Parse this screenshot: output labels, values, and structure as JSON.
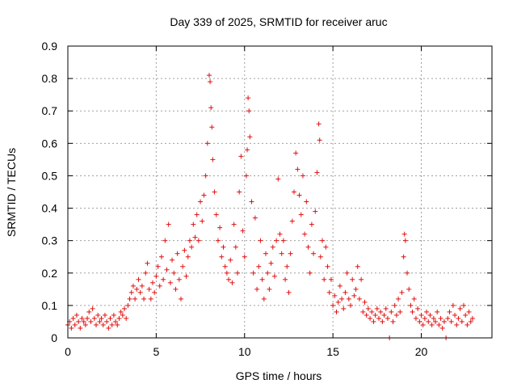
{
  "chart_data": {
    "type": "scatter",
    "title": "Day 339 of 2025, SRMTID for receiver aruc",
    "xlabel": "GPS time / hours",
    "ylabel": "SRMTID / TECUs",
    "xlim": [
      0,
      24
    ],
    "ylim": [
      0,
      0.9
    ],
    "xticks": [
      0,
      5,
      10,
      15,
      20
    ],
    "yticks": [
      0,
      0.1,
      0.2,
      0.3,
      0.4,
      0.5,
      0.6,
      0.7,
      0.8,
      0.9
    ],
    "xtick_labels": [
      "0",
      "5",
      "10",
      "15",
      "20"
    ],
    "ytick_labels": [
      "0",
      "0.1",
      "0.2",
      "0.3",
      "0.4",
      "0.5",
      "0.6",
      "0.7",
      "0.8",
      "0.9"
    ],
    "grid": true,
    "marker": "+",
    "color": "#e01010",
    "series": [
      {
        "name": "SRMTID",
        "points": [
          [
            0.0,
            0.04
          ],
          [
            0.1,
            0.05
          ],
          [
            0.2,
            0.03
          ],
          [
            0.3,
            0.06
          ],
          [
            0.4,
            0.04
          ],
          [
            0.5,
            0.07
          ],
          [
            0.6,
            0.05
          ],
          [
            0.7,
            0.03
          ],
          [
            0.8,
            0.06
          ],
          [
            0.9,
            0.05
          ],
          [
            1.0,
            0.04
          ],
          [
            1.1,
            0.06
          ],
          [
            1.2,
            0.08
          ],
          [
            1.3,
            0.05
          ],
          [
            1.4,
            0.09
          ],
          [
            1.5,
            0.06
          ],
          [
            1.6,
            0.04
          ],
          [
            1.7,
            0.07
          ],
          [
            1.8,
            0.05
          ],
          [
            1.9,
            0.06
          ],
          [
            2.0,
            0.04
          ],
          [
            2.1,
            0.07
          ],
          [
            2.2,
            0.05
          ],
          [
            2.3,
            0.03
          ],
          [
            2.4,
            0.06
          ],
          [
            2.5,
            0.04
          ],
          [
            2.6,
            0.07
          ],
          [
            2.7,
            0.05
          ],
          [
            2.8,
            0.04
          ],
          [
            2.9,
            0.06
          ],
          [
            3.0,
            0.08
          ],
          [
            3.1,
            0.07
          ],
          [
            3.2,
            0.09
          ],
          [
            3.3,
            0.06
          ],
          [
            3.4,
            0.1
          ],
          [
            3.5,
            0.12
          ],
          [
            3.6,
            0.14
          ],
          [
            3.7,
            0.16
          ],
          [
            3.8,
            0.12
          ],
          [
            3.9,
            0.15
          ],
          [
            4.0,
            0.18
          ],
          [
            4.1,
            0.14
          ],
          [
            4.2,
            0.16
          ],
          [
            4.3,
            0.12
          ],
          [
            4.4,
            0.2
          ],
          [
            4.5,
            0.23
          ],
          [
            4.6,
            0.15
          ],
          [
            4.7,
            0.12
          ],
          [
            4.8,
            0.17
          ],
          [
            4.9,
            0.14
          ],
          [
            5.0,
            0.19
          ],
          [
            5.1,
            0.22
          ],
          [
            5.2,
            0.16
          ],
          [
            5.3,
            0.25
          ],
          [
            5.4,
            0.18
          ],
          [
            5.5,
            0.3
          ],
          [
            5.6,
            0.21
          ],
          [
            5.7,
            0.35
          ],
          [
            5.8,
            0.17
          ],
          [
            5.9,
            0.24
          ],
          [
            6.0,
            0.2
          ],
          [
            6.1,
            0.15
          ],
          [
            6.2,
            0.26
          ],
          [
            6.3,
            0.18
          ],
          [
            6.4,
            0.12
          ],
          [
            6.5,
            0.22
          ],
          [
            6.6,
            0.27
          ],
          [
            6.7,
            0.19
          ],
          [
            6.8,
            0.25
          ],
          [
            6.9,
            0.3
          ],
          [
            7.0,
            0.28
          ],
          [
            7.1,
            0.35
          ],
          [
            7.2,
            0.31
          ],
          [
            7.3,
            0.38
          ],
          [
            7.4,
            0.3
          ],
          [
            7.5,
            0.42
          ],
          [
            7.6,
            0.36
          ],
          [
            7.7,
            0.44
          ],
          [
            7.8,
            0.5
          ],
          [
            7.9,
            0.6
          ],
          [
            8.0,
            0.81
          ],
          [
            8.05,
            0.79
          ],
          [
            8.1,
            0.71
          ],
          [
            8.15,
            0.65
          ],
          [
            8.2,
            0.55
          ],
          [
            8.3,
            0.45
          ],
          [
            8.4,
            0.38
          ],
          [
            8.5,
            0.3
          ],
          [
            8.6,
            0.34
          ],
          [
            8.7,
            0.25
          ],
          [
            8.8,
            0.28
          ],
          [
            8.9,
            0.22
          ],
          [
            9.0,
            0.2
          ],
          [
            9.1,
            0.18
          ],
          [
            9.2,
            0.24
          ],
          [
            9.3,
            0.17
          ],
          [
            9.4,
            0.35
          ],
          [
            9.5,
            0.28
          ],
          [
            9.6,
            0.2
          ],
          [
            9.7,
            0.45
          ],
          [
            9.8,
            0.56
          ],
          [
            9.9,
            0.33
          ],
          [
            10.0,
            0.25
          ],
          [
            10.1,
            0.5
          ],
          [
            10.15,
            0.58
          ],
          [
            10.2,
            0.74
          ],
          [
            10.25,
            0.7
          ],
          [
            10.3,
            0.62
          ],
          [
            10.4,
            0.42
          ],
          [
            10.5,
            0.2
          ],
          [
            10.6,
            0.37
          ],
          [
            10.7,
            0.15
          ],
          [
            10.8,
            0.22
          ],
          [
            10.9,
            0.3
          ],
          [
            11.0,
            0.18
          ],
          [
            11.1,
            0.12
          ],
          [
            11.2,
            0.26
          ],
          [
            11.3,
            0.2
          ],
          [
            11.4,
            0.15
          ],
          [
            11.5,
            0.23
          ],
          [
            11.6,
            0.28
          ],
          [
            11.7,
            0.19
          ],
          [
            11.8,
            0.3
          ],
          [
            11.9,
            0.49
          ],
          [
            12.0,
            0.32
          ],
          [
            12.1,
            0.26
          ],
          [
            12.2,
            0.3
          ],
          [
            12.3,
            0.18
          ],
          [
            12.4,
            0.22
          ],
          [
            12.5,
            0.14
          ],
          [
            12.6,
            0.26
          ],
          [
            12.7,
            0.36
          ],
          [
            12.8,
            0.45
          ],
          [
            12.9,
            0.57
          ],
          [
            13.0,
            0.52
          ],
          [
            13.1,
            0.44
          ],
          [
            13.2,
            0.38
          ],
          [
            13.3,
            0.5
          ],
          [
            13.4,
            0.32
          ],
          [
            13.5,
            0.42
          ],
          [
            13.6,
            0.28
          ],
          [
            13.7,
            0.2
          ],
          [
            13.8,
            0.35
          ],
          [
            13.9,
            0.26
          ],
          [
            14.0,
            0.39
          ],
          [
            14.1,
            0.51
          ],
          [
            14.2,
            0.66
          ],
          [
            14.25,
            0.61
          ],
          [
            14.3,
            0.25
          ],
          [
            14.4,
            0.3
          ],
          [
            14.5,
            0.18
          ],
          [
            14.6,
            0.28
          ],
          [
            14.7,
            0.22
          ],
          [
            14.8,
            0.14
          ],
          [
            14.9,
            0.18
          ],
          [
            15.0,
            0.1
          ],
          [
            15.1,
            0.13
          ],
          [
            15.2,
            0.08
          ],
          [
            15.3,
            0.11
          ],
          [
            15.4,
            0.16
          ],
          [
            15.5,
            0.12
          ],
          [
            15.6,
            0.09
          ],
          [
            15.7,
            0.14
          ],
          [
            15.8,
            0.2
          ],
          [
            15.9,
            0.12
          ],
          [
            16.0,
            0.1
          ],
          [
            16.1,
            0.18
          ],
          [
            16.2,
            0.13
          ],
          [
            16.3,
            0.15
          ],
          [
            16.4,
            0.22
          ],
          [
            16.5,
            0.12
          ],
          [
            16.6,
            0.18
          ],
          [
            16.7,
            0.08
          ],
          [
            16.8,
            0.11
          ],
          [
            16.9,
            0.07
          ],
          [
            17.0,
            0.09
          ],
          [
            17.1,
            0.06
          ],
          [
            17.2,
            0.08
          ],
          [
            17.3,
            0.05
          ],
          [
            17.4,
            0.07
          ],
          [
            17.5,
            0.09
          ],
          [
            17.6,
            0.06
          ],
          [
            17.7,
            0.08
          ],
          [
            17.8,
            0.05
          ],
          [
            17.9,
            0.07
          ],
          [
            18.0,
            0.09
          ],
          [
            18.1,
            0.06
          ],
          [
            18.2,
            0.0
          ],
          [
            18.3,
            0.08
          ],
          [
            18.4,
            0.05
          ],
          [
            18.5,
            0.1
          ],
          [
            18.6,
            0.07
          ],
          [
            18.7,
            0.12
          ],
          [
            18.8,
            0.08
          ],
          [
            18.9,
            0.14
          ],
          [
            19.0,
            0.25
          ],
          [
            19.05,
            0.32
          ],
          [
            19.1,
            0.3
          ],
          [
            19.2,
            0.2
          ],
          [
            19.3,
            0.15
          ],
          [
            19.4,
            0.1
          ],
          [
            19.5,
            0.08
          ],
          [
            19.6,
            0.12
          ],
          [
            19.7,
            0.06
          ],
          [
            19.8,
            0.09
          ],
          [
            19.9,
            0.05
          ],
          [
            20.0,
            0.07
          ],
          [
            20.1,
            0.04
          ],
          [
            20.2,
            0.06
          ],
          [
            20.3,
            0.08
          ],
          [
            20.4,
            0.05
          ],
          [
            20.5,
            0.07
          ],
          [
            20.6,
            0.04
          ],
          [
            20.7,
            0.06
          ],
          [
            20.8,
            0.05
          ],
          [
            20.9,
            0.08
          ],
          [
            21.0,
            0.04
          ],
          [
            21.1,
            0.06
          ],
          [
            21.2,
            0.03
          ],
          [
            21.3,
            0.05
          ],
          [
            21.4,
            0.0
          ],
          [
            21.5,
            0.06
          ],
          [
            21.6,
            0.08
          ],
          [
            21.7,
            0.05
          ],
          [
            21.8,
            0.1
          ],
          [
            21.9,
            0.07
          ],
          [
            22.0,
            0.04
          ],
          [
            22.1,
            0.06
          ],
          [
            22.2,
            0.09
          ],
          [
            22.3,
            0.05
          ],
          [
            22.4,
            0.1
          ],
          [
            22.5,
            0.07
          ],
          [
            22.6,
            0.04
          ],
          [
            22.7,
            0.08
          ],
          [
            22.8,
            0.05
          ],
          [
            22.9,
            0.06
          ]
        ]
      }
    ]
  }
}
